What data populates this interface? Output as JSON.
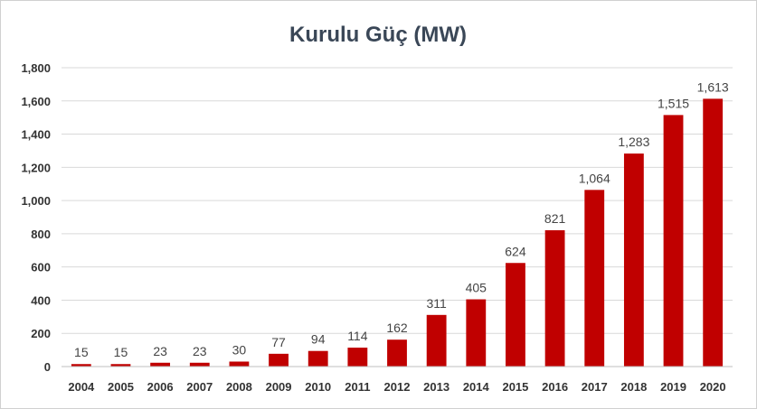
{
  "chart_data": {
    "type": "bar",
    "title": "Kurulu Güç (MW)",
    "xlabel": "",
    "ylabel": "",
    "categories": [
      "2004",
      "2005",
      "2006",
      "2007",
      "2008",
      "2009",
      "2010",
      "2011",
      "2012",
      "2013",
      "2014",
      "2015",
      "2016",
      "2017",
      "2018",
      "2019",
      "2020"
    ],
    "values": [
      15,
      15,
      23,
      23,
      30,
      77,
      94,
      114,
      162,
      311,
      405,
      624,
      821,
      1064,
      1283,
      1515,
      1613
    ],
    "data_labels": [
      "15",
      "15",
      "23",
      "23",
      "30",
      "77",
      "94",
      "114",
      "162",
      "311",
      "405",
      "624",
      "821",
      "1,064",
      "1,283",
      "1,515",
      "1,613"
    ],
    "ylim": [
      0,
      1800
    ],
    "yticks": [
      0,
      200,
      400,
      600,
      800,
      1000,
      1200,
      1400,
      1600,
      1800
    ],
    "ytick_labels": [
      "0",
      "200",
      "400",
      "600",
      "800",
      "1,000",
      "1,200",
      "1,400",
      "1,600",
      "1,800"
    ],
    "grid": true,
    "legend": "none",
    "colors": {
      "bar": "#c00000",
      "grid": "#d9d9d9",
      "axis": "#bfbfbf",
      "title": "#3a4757"
    }
  }
}
